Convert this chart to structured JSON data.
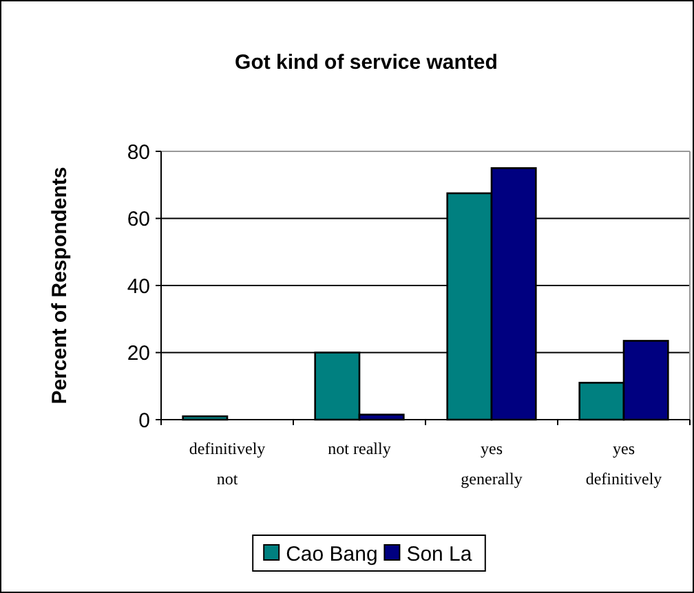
{
  "chart_data": {
    "type": "bar",
    "title": "Got kind of service wanted",
    "ylabel": "Percent of Respondents",
    "categories": [
      "definitively not",
      "not really",
      "yes generally",
      "yes definitively"
    ],
    "series": [
      {
        "name": "Cao Bang",
        "color": "#008080",
        "values": [
          1,
          20,
          67.5,
          11
        ]
      },
      {
        "name": "Son La",
        "color": "#000080",
        "values": [
          0,
          1.5,
          75,
          23.5
        ]
      }
    ],
    "ylim": [
      0,
      80
    ],
    "yticks": [
      0,
      20,
      40,
      60,
      80
    ],
    "grid": "y",
    "legend": "bottom"
  }
}
